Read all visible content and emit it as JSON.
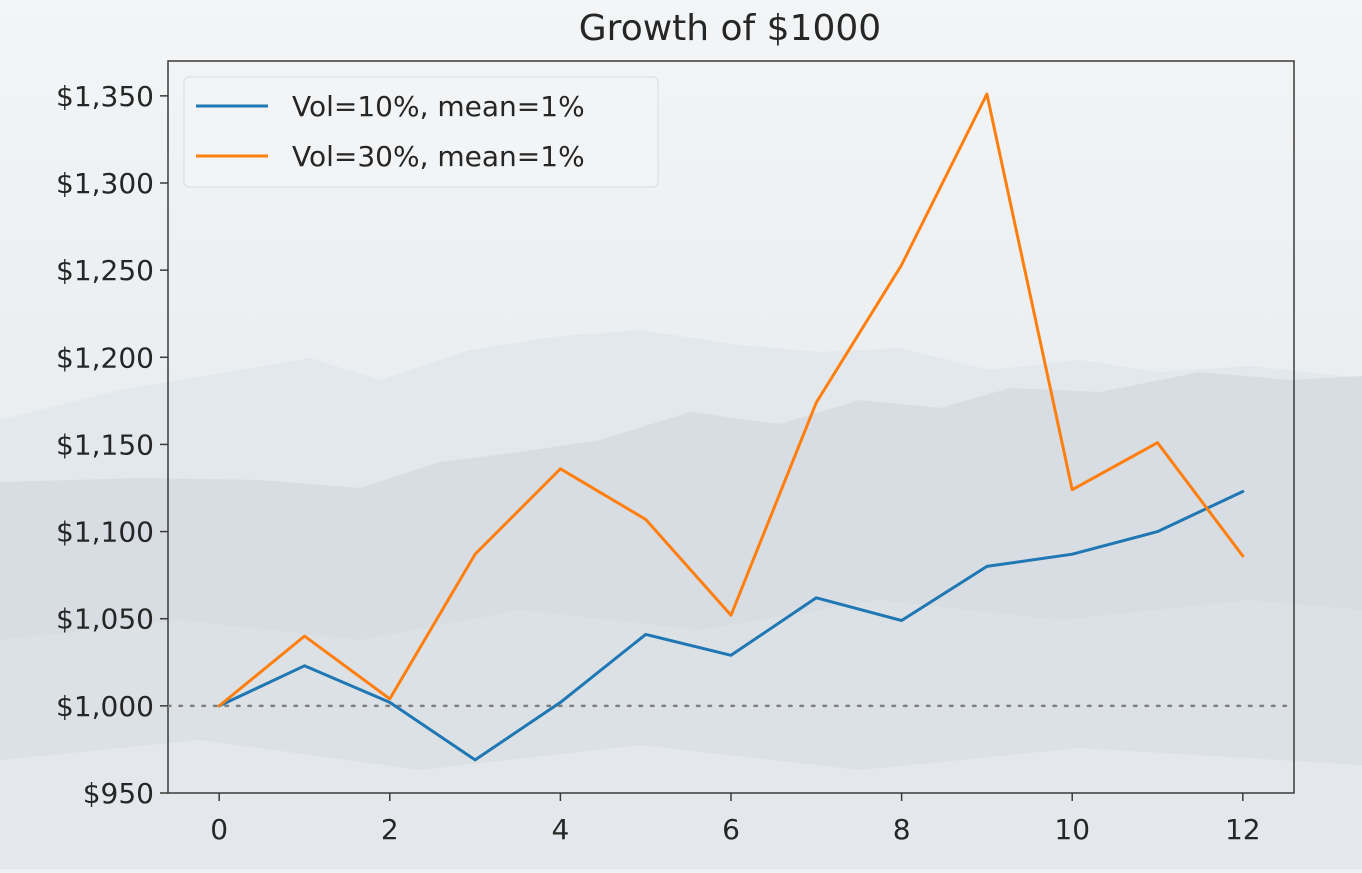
{
  "chart_data": {
    "type": "line",
    "title": "Growth of $1000",
    "xlabel": "",
    "ylabel": "",
    "x": [
      0,
      1,
      2,
      3,
      4,
      5,
      6,
      7,
      8,
      9,
      10,
      11,
      12
    ],
    "xlim": [
      -0.6,
      12.6
    ],
    "ylim": [
      950,
      1370
    ],
    "xticks": [
      0,
      2,
      4,
      6,
      8,
      10,
      12
    ],
    "xtick_labels": [
      "0",
      "2",
      "4",
      "6",
      "8",
      "10",
      "12"
    ],
    "yticks": [
      950,
      1000,
      1050,
      1100,
      1150,
      1200,
      1250,
      1300,
      1350
    ],
    "ytick_labels": [
      "$950",
      "$1,000",
      "$1,050",
      "$1,100",
      "$1,150",
      "$1,200",
      "$1,250",
      "$1,300",
      "$1,350"
    ],
    "reference_line": {
      "y": 1000,
      "style": "dotted"
    },
    "grid": false,
    "legend_position": "top-left",
    "series": [
      {
        "name": "Vol=10%, mean=1%",
        "color": "#1f77b4",
        "values": [
          1000,
          1023,
          1002,
          969,
          1002,
          1041,
          1029,
          1062,
          1049,
          1080,
          1087,
          1100,
          1123
        ]
      },
      {
        "name": "Vol=30%, mean=1%",
        "color": "#ff7f0e",
        "values": [
          1000,
          1040,
          1004,
          1087,
          1136,
          1107,
          1052,
          1174,
          1253,
          1351,
          1124,
          1151,
          1086
        ]
      }
    ]
  }
}
